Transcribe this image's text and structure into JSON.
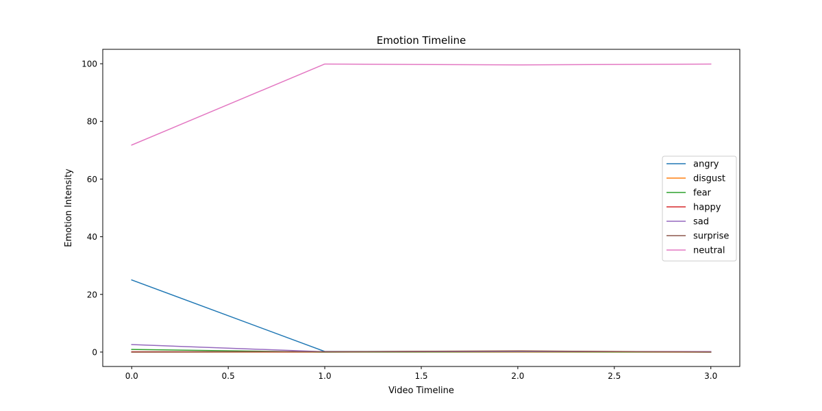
{
  "chart_data": {
    "type": "line",
    "title": "Emotion Timeline",
    "xlabel": "Video Timeline",
    "ylabel": "Emotion Intensity",
    "x": [
      0,
      1,
      2,
      3
    ],
    "xlim": [
      -0.15,
      3.15
    ],
    "ylim": [
      -5,
      105
    ],
    "xticks": [
      0.0,
      0.5,
      1.0,
      1.5,
      2.0,
      2.5,
      3.0
    ],
    "xtick_labels": [
      "0.0",
      "0.5",
      "1.0",
      "1.5",
      "2.0",
      "2.5",
      "3.0"
    ],
    "yticks": [
      0,
      20,
      40,
      60,
      80,
      100
    ],
    "ytick_labels": [
      "0",
      "20",
      "40",
      "60",
      "80",
      "100"
    ],
    "grid": false,
    "legend_position": "center-right",
    "series": [
      {
        "name": "angry",
        "color": "#1f77b4",
        "values": [
          25.0,
          0.2,
          0.2,
          0.1
        ]
      },
      {
        "name": "disgust",
        "color": "#ff7f0e",
        "values": [
          0.0,
          0.0,
          0.0,
          0.0
        ]
      },
      {
        "name": "fear",
        "color": "#2ca02c",
        "values": [
          0.9,
          0.0,
          0.1,
          0.0
        ]
      },
      {
        "name": "happy",
        "color": "#d62728",
        "values": [
          0.1,
          0.1,
          0.3,
          0.1
        ]
      },
      {
        "name": "sad",
        "color": "#9467bd",
        "values": [
          2.6,
          0.1,
          0.2,
          0.1
        ]
      },
      {
        "name": "surprise",
        "color": "#8c564b",
        "values": [
          0.0,
          0.1,
          0.4,
          0.0
        ]
      },
      {
        "name": "neutral",
        "color": "#e377c2",
        "values": [
          71.8,
          99.9,
          99.6,
          99.9
        ]
      }
    ]
  }
}
